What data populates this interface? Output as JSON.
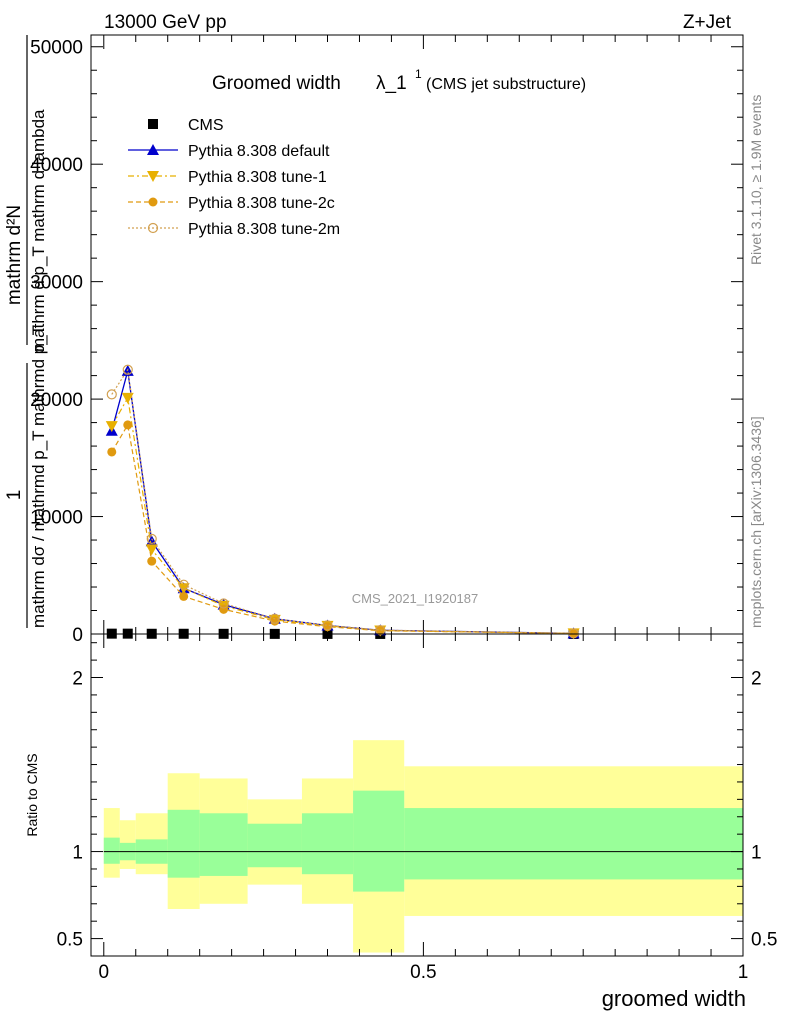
{
  "header": {
    "left": "13000 GeV pp",
    "right": "Z+Jet"
  },
  "side_labels": {
    "rivet": "Rivet 3.1.10, ≥ 1.9M events",
    "mcplots": "mcplots.cern.ch [arXiv:1306.3436]"
  },
  "chart_data": [
    {
      "type": "line",
      "title_main": "Groomed width",
      "title_lambda": "λ_1",
      "title_sup": "1",
      "title_sub": "(CMS jet substructure)",
      "watermark": "CMS_2021_I1920187",
      "ylabel_top": "1",
      "ylabel_bottom": "mathrm dσ / mathrmd p_T mathrmd p_T",
      "ylabel_top2": "mathrm d²N",
      "ylabel_bottom2": "mathrm d p_T mathrm d lambda",
      "ylim": [
        0,
        51000
      ],
      "yticks": [
        0,
        10000,
        20000,
        30000,
        40000,
        50000
      ],
      "ytick_labels": [
        "0",
        "10000",
        "20000",
        "30000",
        "40000",
        "50000"
      ],
      "legend": [
        {
          "label": "CMS",
          "marker": "square",
          "color": "#000000"
        },
        {
          "label": "Pythia 8.308 default",
          "marker": "triangle-up",
          "color": "#0000cc"
        },
        {
          "label": "Pythia 8.308 tune-1",
          "marker": "triangle-down",
          "color": "#e8b000"
        },
        {
          "label": "Pythia 8.308 tune-2c",
          "marker": "circle",
          "color": "#e09a10"
        },
        {
          "label": "Pythia 8.308 tune-2m",
          "marker": "circle-open",
          "color": "#d2a050"
        }
      ],
      "data_x": [
        0.0125,
        0.0375,
        0.075,
        0.125,
        0.1875,
        0.2675,
        0.35,
        0.4325,
        0.735
      ],
      "series": [
        {
          "name": "CMS",
          "values": [
            30,
            30,
            20,
            20,
            15,
            10,
            8,
            5,
            2
          ]
        },
        {
          "name": "Pythia 8.308 default",
          "values": [
            17300,
            22400,
            7900,
            3900,
            2500,
            1300,
            720,
            320,
            55
          ]
        },
        {
          "name": "Pythia 8.308 tune-1",
          "values": [
            17700,
            20100,
            7200,
            3900,
            2400,
            1200,
            690,
            300,
            50
          ]
        },
        {
          "name": "Pythia 8.308 tune-2c",
          "values": [
            15500,
            17800,
            6200,
            3200,
            2100,
            1100,
            620,
            280,
            45
          ]
        },
        {
          "name": "Pythia 8.308 tune-2m",
          "values": [
            20400,
            22500,
            8100,
            4200,
            2600,
            1300,
            740,
            330,
            58
          ]
        }
      ]
    },
    {
      "type": "area",
      "ylabel": "Ratio to CMS",
      "xlabel": "groomed width",
      "xlim": [
        -0.02,
        1.0
      ],
      "ylim": [
        0.4,
        2.25
      ],
      "yticks": [
        0.5,
        1,
        2
      ],
      "ytick_labels": [
        "0.5",
        "1",
        "2"
      ],
      "xticks": [
        0,
        0.5,
        1
      ],
      "xtick_labels": [
        "0",
        "0.5",
        "1"
      ],
      "bins": [
        {
          "x0": 0.0,
          "x1": 0.025,
          "in_lo": 0.93,
          "in_hi": 1.08,
          "out_lo": 0.85,
          "out_hi": 1.25
        },
        {
          "x0": 0.025,
          "x1": 0.05,
          "in_lo": 0.95,
          "in_hi": 1.05,
          "out_lo": 0.9,
          "out_hi": 1.18
        },
        {
          "x0": 0.05,
          "x1": 0.1,
          "in_lo": 0.93,
          "in_hi": 1.07,
          "out_lo": 0.87,
          "out_hi": 1.22
        },
        {
          "x0": 0.1,
          "x1": 0.15,
          "in_lo": 0.85,
          "in_hi": 1.24,
          "out_lo": 0.67,
          "out_hi": 1.45
        },
        {
          "x0": 0.15,
          "x1": 0.225,
          "in_lo": 0.86,
          "in_hi": 1.22,
          "out_lo": 0.7,
          "out_hi": 1.42
        },
        {
          "x0": 0.225,
          "x1": 0.31,
          "in_lo": 0.91,
          "in_hi": 1.16,
          "out_lo": 0.81,
          "out_hi": 1.3
        },
        {
          "x0": 0.31,
          "x1": 0.39,
          "in_lo": 0.87,
          "in_hi": 1.22,
          "out_lo": 0.7,
          "out_hi": 1.42
        },
        {
          "x0": 0.39,
          "x1": 0.47,
          "in_lo": 0.77,
          "in_hi": 1.35,
          "out_lo": 0.42,
          "out_hi": 1.64
        },
        {
          "x0": 0.47,
          "x1": 1.0,
          "in_lo": 0.84,
          "in_hi": 1.25,
          "out_lo": 0.63,
          "out_hi": 1.49
        }
      ],
      "band_colors": {
        "inner": "#99ff99",
        "outer": "#ffff99"
      },
      "reference_line": 1
    }
  ]
}
